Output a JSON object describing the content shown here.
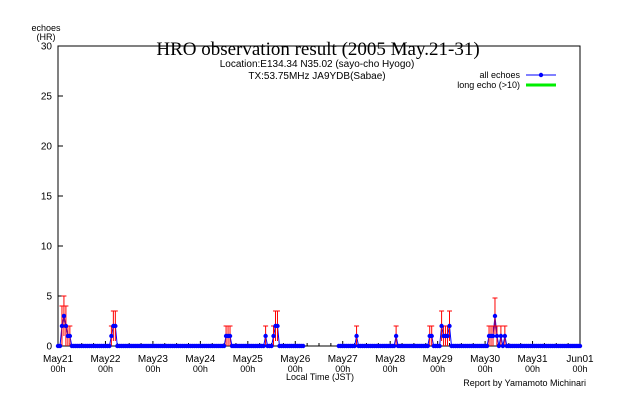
{
  "chart_data": {
    "type": "line",
    "title": "HRO observation result (2005 May.21-31)",
    "subtitle_lines": [
      "Location:E134.34 N35.02 (sayo-cho Hyogo)",
      "TX:53.75MHz JA9YDB(Sabae)"
    ],
    "ylabel_lines": [
      "echoes",
      "(HR)"
    ],
    "xlabel": "Local Time (JST)",
    "credit": "Report by Yamamoto Michinari",
    "ylim": [
      0,
      30
    ],
    "yticks": [
      0,
      5,
      10,
      15,
      20,
      25,
      30
    ],
    "xlim_days": [
      0,
      11
    ],
    "xticks": [
      {
        "day": 0,
        "date": "May21",
        "hour": "00h"
      },
      {
        "day": 1,
        "date": "May22",
        "hour": "00h"
      },
      {
        "day": 2,
        "date": "May23",
        "hour": "00h"
      },
      {
        "day": 3,
        "date": "May24",
        "hour": "00h"
      },
      {
        "day": 4,
        "date": "May25",
        "hour": "00h"
      },
      {
        "day": 5,
        "date": "May26",
        "hour": "00h"
      },
      {
        "day": 6,
        "date": "May27",
        "hour": "00h"
      },
      {
        "day": 7,
        "date": "May28",
        "hour": "00h"
      },
      {
        "day": 8,
        "date": "May29",
        "hour": "00h"
      },
      {
        "day": 9,
        "date": "May30",
        "hour": "00h"
      },
      {
        "day": 10,
        "date": "May31",
        "hour": "00h"
      },
      {
        "day": 11,
        "date": "Jun01",
        "hour": "00h"
      }
    ],
    "legend_placement": "top-right",
    "gap_hours": [
      [
        124,
        142
      ]
    ],
    "series": [
      {
        "name": "all echoes",
        "color": "#0000ff",
        "error_color": "#ff0000",
        "nonzero_points": [
          {
            "hour": 2,
            "value": 2,
            "err": 2
          },
          {
            "hour": 3,
            "value": 3,
            "err": 2
          },
          {
            "hour": 4,
            "value": 2,
            "err": 2
          },
          {
            "hour": 5,
            "value": 1,
            "err": 1
          },
          {
            "hour": 6,
            "value": 1,
            "err": 1
          },
          {
            "hour": 27,
            "value": 1,
            "err": 1
          },
          {
            "hour": 28,
            "value": 2,
            "err": 1.5
          },
          {
            "hour": 29,
            "value": 2,
            "err": 1.5
          },
          {
            "hour": 85,
            "value": 1,
            "err": 1
          },
          {
            "hour": 86,
            "value": 1,
            "err": 1
          },
          {
            "hour": 87,
            "value": 1,
            "err": 1
          },
          {
            "hour": 105,
            "value": 1,
            "err": 1
          },
          {
            "hour": 109,
            "value": 1,
            "err": 1
          },
          {
            "hour": 110,
            "value": 2,
            "err": 1.5
          },
          {
            "hour": 111,
            "value": 2,
            "err": 1.5
          },
          {
            "hour": 151,
            "value": 1,
            "err": 1
          },
          {
            "hour": 171,
            "value": 1,
            "err": 1
          },
          {
            "hour": 188,
            "value": 1,
            "err": 1
          },
          {
            "hour": 189,
            "value": 1,
            "err": 1
          },
          {
            "hour": 194,
            "value": 2,
            "err": 1.5
          },
          {
            "hour": 195,
            "value": 1,
            "err": 1
          },
          {
            "hour": 196,
            "value": 1,
            "err": 1
          },
          {
            "hour": 197,
            "value": 1,
            "err": 1
          },
          {
            "hour": 198,
            "value": 2,
            "err": 1.5
          },
          {
            "hour": 218,
            "value": 1,
            "err": 1
          },
          {
            "hour": 219,
            "value": 1,
            "err": 1
          },
          {
            "hour": 220,
            "value": 1,
            "err": 1
          },
          {
            "hour": 221,
            "value": 3,
            "err": 1.8
          },
          {
            "hour": 222,
            "value": 1,
            "err": 1
          },
          {
            "hour": 224,
            "value": 1,
            "err": 1
          },
          {
            "hour": 226,
            "value": 1,
            "err": 1
          }
        ]
      },
      {
        "name": "long echo (>10)",
        "color": "#00ee00",
        "nonzero_points": []
      }
    ]
  }
}
